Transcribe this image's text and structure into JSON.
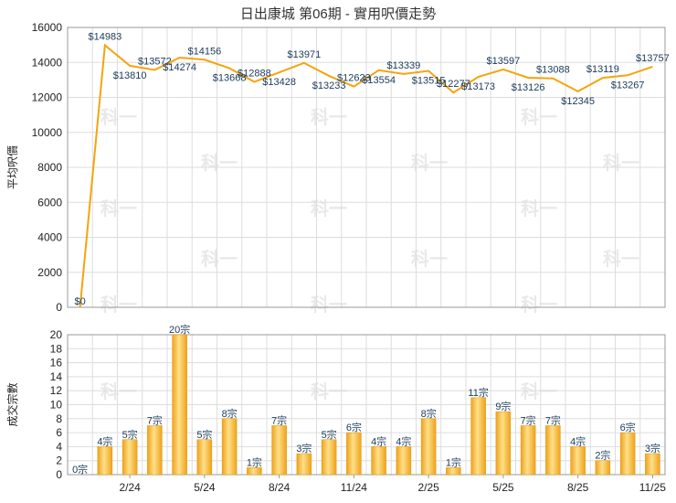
{
  "title": "日出康城 第06期 - 實用呎價走勢",
  "watermark": "科一",
  "colors": {
    "line": "#f5a40c",
    "bar_light": "#fde08a",
    "bar_dark": "#f0a21a",
    "grid": "#dddddd",
    "axis": "#999999"
  },
  "chart_data": [
    {
      "type": "line",
      "ylabel": "平均呎價",
      "ylim": [
        0,
        16000
      ],
      "yticks": [
        0,
        2000,
        4000,
        6000,
        8000,
        10000,
        12000,
        14000,
        16000
      ],
      "grid": true,
      "values": [
        0,
        14983,
        13810,
        13572,
        14274,
        14156,
        13668,
        12888,
        13428,
        13971,
        13233,
        12623,
        13554,
        13339,
        13515,
        12277,
        13173,
        13597,
        13126,
        13088,
        12345,
        13119,
        13267,
        13757
      ],
      "labels": [
        "$0",
        "$14983",
        "$13810",
        "$13572",
        "$14274",
        "$14156",
        "$13668",
        "$12888",
        "$13428",
        "$13971",
        "$13233",
        "$12623",
        "$13554",
        "$13339",
        "$13515",
        "$12277",
        "$13173",
        "$13597",
        "$13126",
        "$13088",
        "$12345",
        "$13119",
        "$13267",
        "$13757"
      ]
    },
    {
      "type": "bar",
      "ylabel": "成交宗數",
      "ylim": [
        0,
        20
      ],
      "yticks": [
        0,
        2,
        4,
        6,
        8,
        10,
        12,
        14,
        16,
        18,
        20
      ],
      "grid": true,
      "values": [
        0,
        4,
        5,
        7,
        20,
        5,
        8,
        1,
        7,
        3,
        5,
        6,
        4,
        4,
        8,
        1,
        11,
        9,
        7,
        7,
        4,
        2,
        6,
        3
      ],
      "labels": [
        "0宗",
        "4宗",
        "5宗",
        "7宗",
        "20宗",
        "5宗",
        "8宗",
        "1宗",
        "7宗",
        "3宗",
        "5宗",
        "6宗",
        "4宗",
        "4宗",
        "8宗",
        "1宗",
        "11宗",
        "9宗",
        "7宗",
        "7宗",
        "4宗",
        "2宗",
        "6宗",
        "3宗"
      ],
      "x_ticks": [
        {
          "index": 2,
          "label": "2/24"
        },
        {
          "index": 5,
          "label": "5/24"
        },
        {
          "index": 8,
          "label": "8/24"
        },
        {
          "index": 11,
          "label": "11/24"
        },
        {
          "index": 14,
          "label": "2/25"
        },
        {
          "index": 17,
          "label": "5/25"
        },
        {
          "index": 20,
          "label": "8/25"
        },
        {
          "index": 23,
          "label": "11/25"
        }
      ]
    }
  ]
}
